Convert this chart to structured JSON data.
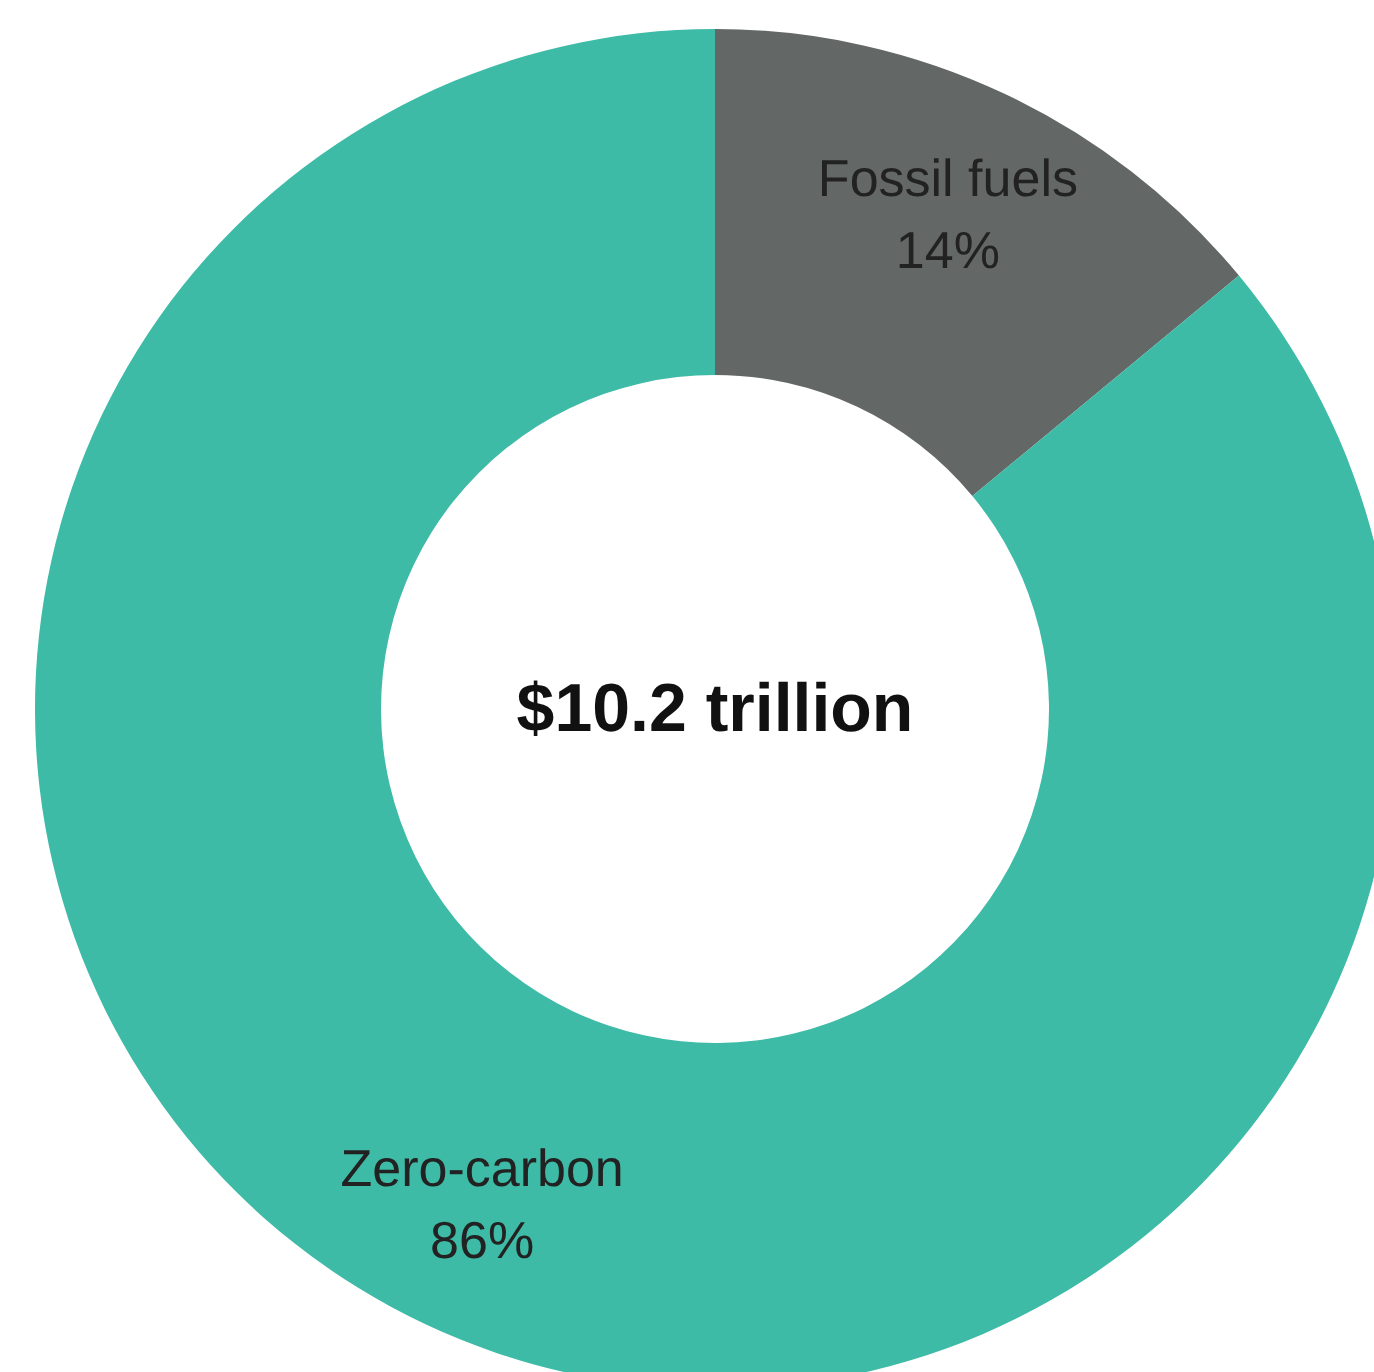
{
  "chart_data": {
    "type": "donut",
    "categories": [
      "Fossil fuels",
      "Zero-carbon"
    ],
    "values": [
      14,
      86
    ],
    "colors": [
      "#636766",
      "#3dbba6"
    ],
    "value_labels": [
      "14%",
      "86%"
    ],
    "annotations": [
      "$10.2 trillion"
    ]
  }
}
